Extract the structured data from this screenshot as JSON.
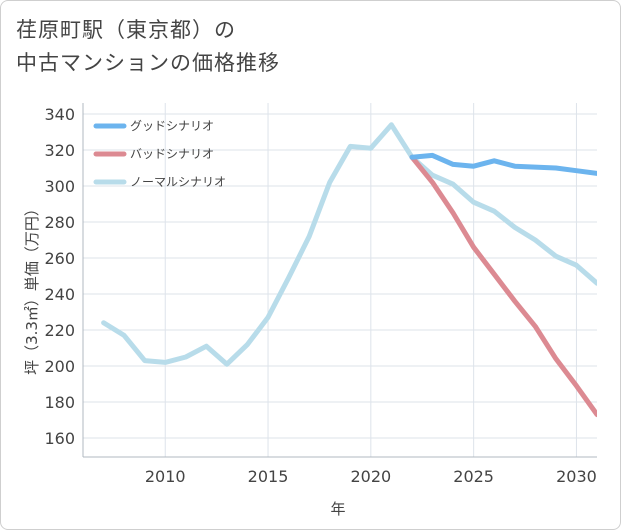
{
  "title": "荏原町駅（東京都）の\n中古マンションの価格推移",
  "chart_data": {
    "type": "line",
    "xlabel": "年",
    "ylabel": "坪（3.3㎡）単価（万円）",
    "xlim": [
      2006,
      2031
    ],
    "ylim": [
      150,
      340
    ],
    "xticks": [
      2010,
      2015,
      2020,
      2025,
      2030
    ],
    "yticks": [
      160,
      180,
      200,
      220,
      240,
      260,
      280,
      300,
      320,
      340
    ],
    "grid": true,
    "legend_position": "top-left",
    "series": [
      {
        "name": "グッドシナリオ",
        "color": "#6cb4ee",
        "x": [
          2022,
          2023,
          2024,
          2025,
          2026,
          2027,
          2028,
          2029,
          2030,
          2031
        ],
        "y": [
          316,
          317,
          312,
          311,
          314,
          311,
          310.5,
          310,
          308.5,
          307
        ]
      },
      {
        "name": "バッドシナリオ",
        "color": "#dc8a92",
        "x": [
          2022,
          2023,
          2024,
          2025,
          2026,
          2027,
          2028,
          2029,
          2030,
          2031
        ],
        "y": [
          316,
          302,
          285,
          266,
          251,
          236,
          222,
          204,
          189,
          173
        ]
      },
      {
        "name": "ノーマルシナリオ",
        "color": "#b8dcea",
        "x": [
          2007,
          2008,
          2009,
          2010,
          2011,
          2012,
          2013,
          2014,
          2015,
          2016,
          2017,
          2018,
          2019,
          2020,
          2021,
          2022,
          2023,
          2024,
          2025,
          2026,
          2027,
          2028,
          2029,
          2030,
          2031
        ],
        "y": [
          224,
          217,
          203,
          202,
          205,
          211,
          201,
          212,
          227,
          249,
          272,
          302,
          322,
          321,
          334,
          316,
          306,
          301,
          291,
          286,
          277,
          270,
          261,
          256,
          246
        ]
      }
    ]
  }
}
